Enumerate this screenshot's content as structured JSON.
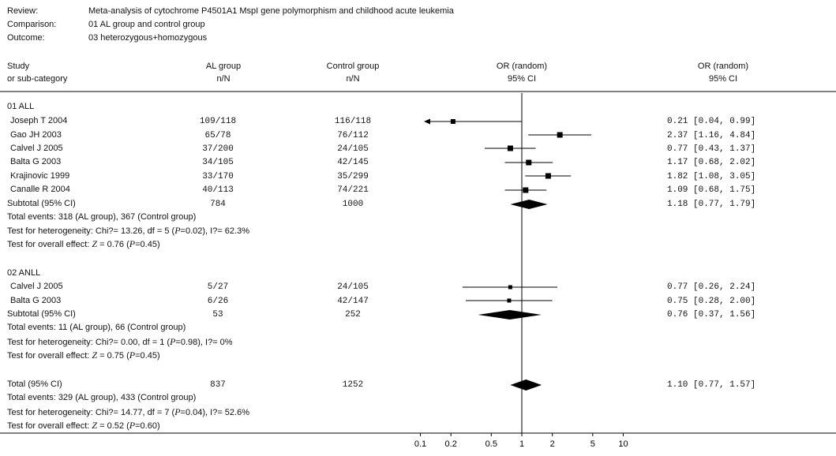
{
  "header": {
    "review_label": "Review:",
    "review": "Meta-analysis of cytochrome P4501A1 MspI gene polymorphism and childhood acute leukemia",
    "comparison_label": "Comparison:",
    "comparison": "01 AL group and control group",
    "outcome_label": "Outcome:",
    "outcome": "03 heterozygous+homozygous"
  },
  "columns": {
    "study_1": "Study",
    "study_2": "or sub-category",
    "al_1": "AL group",
    "al_2": "n/N",
    "ctrl_1": "Control group",
    "ctrl_2": "n/N",
    "or_1": "OR (random)",
    "or_2": "95% CI",
    "orci_1": "OR (random)",
    "orci_2": "95% CI"
  },
  "groups": [
    {
      "title": "01 ALL",
      "studies": [
        {
          "name": "Joseph T 2004",
          "al": "109/118",
          "ctrl": "116/118",
          "or": 0.21,
          "lo": 0.04,
          "hi": 0.99,
          "ci_text": "0.21 [0.04, 0.99]"
        },
        {
          "name": "Gao JH 2003",
          "al": "65/78",
          "ctrl": "76/112",
          "or": 2.37,
          "lo": 1.16,
          "hi": 4.84,
          "ci_text": "2.37 [1.16, 4.84]"
        },
        {
          "name": "Calvel J 2005",
          "al": "37/200",
          "ctrl": "24/105",
          "or": 0.77,
          "lo": 0.43,
          "hi": 1.37,
          "ci_text": "0.77 [0.43, 1.37]"
        },
        {
          "name": "Balta G 2003",
          "al": "34/105",
          "ctrl": "42/145",
          "or": 1.17,
          "lo": 0.68,
          "hi": 2.02,
          "ci_text": "1.17 [0.68, 2.02]"
        },
        {
          "name": "Krajinovic 1999",
          "al": "33/170",
          "ctrl": "35/299",
          "or": 1.82,
          "lo": 1.08,
          "hi": 3.05,
          "ci_text": "1.82 [1.08, 3.05]"
        },
        {
          "name": "Canalle R 2004",
          "al": "40/113",
          "ctrl": "74/221",
          "or": 1.09,
          "lo": 0.68,
          "hi": 1.75,
          "ci_text": "1.09 [0.68, 1.75]"
        }
      ],
      "subtotal": {
        "label": "Subtotal (95% CI)",
        "al": "784",
        "ctrl": "1000",
        "or": 1.18,
        "lo": 0.77,
        "hi": 1.79,
        "ci_text": "1.18 [0.77, 1.79]"
      },
      "events": "Total events: 318 (AL group), 367 (Control group)",
      "het_pre": "Test for heterogeneity: Chi?= 13.26, df = 5 (",
      "het_p": "P",
      "het_post": "=0.02), I?= 62.3%",
      "overall_pre": "Test for overall effect: ",
      "overall_z": "Z",
      "overall_mid": " = 0.76 (",
      "overall_p": "P",
      "overall_post": "=0.45)"
    },
    {
      "title": "02 ANLL",
      "studies": [
        {
          "name": "Calvel J 2005",
          "al": "5/27",
          "ctrl": "24/105",
          "or": 0.77,
          "lo": 0.26,
          "hi": 2.24,
          "ci_text": "0.77 [0.26, 2.24]"
        },
        {
          "name": "Balta G 2003",
          "al": "6/26",
          "ctrl": "42/147",
          "or": 0.75,
          "lo": 0.28,
          "hi": 2.0,
          "ci_text": "0.75 [0.28, 2.00]"
        }
      ],
      "subtotal": {
        "label": "Subtotal (95% CI)",
        "al": "53",
        "ctrl": "252",
        "or": 0.76,
        "lo": 0.37,
        "hi": 1.56,
        "ci_text": "0.76 [0.37, 1.56]"
      },
      "events": "Total events: 11 (AL group), 66 (Control group)",
      "het_pre": "Test for heterogeneity: Chi?= 0.00, df = 1 (",
      "het_p": "P",
      "het_post": "=0.98), I?= 0%",
      "overall_pre": "Test for overall effect: ",
      "overall_z": "Z",
      "overall_mid": " = 0.75 (",
      "overall_p": "P",
      "overall_post": "=0.45)"
    }
  ],
  "total": {
    "label": "Total (95% CI)",
    "al": "837",
    "ctrl": "1252",
    "or": 1.1,
    "lo": 0.77,
    "hi": 1.57,
    "ci_text": "1.10 [0.77, 1.57]",
    "events": "Total events: 329 (AL group), 433 (Control group)",
    "het_pre": "Test for heterogeneity: Chi?= 14.77, df = 7 (",
    "het_p": "P",
    "het_post": "=0.04), I?= 52.6%",
    "overall_pre": "Test for overall effect: ",
    "overall_z": "Z",
    "overall_mid": " = 0.52 (",
    "overall_p": "P",
    "overall_post": "=0.60)"
  },
  "chart_data": {
    "type": "scatter",
    "scale": "log",
    "xlim": [
      0.1,
      10
    ],
    "ticks": [
      0.1,
      0.2,
      0.5,
      1,
      2,
      5,
      10
    ],
    "tick_labels": [
      "0.1",
      "0.2",
      "0.5",
      "1",
      "2",
      "5",
      "10"
    ],
    "null_line": 1,
    "colors": {
      "ink": "#000000"
    }
  }
}
